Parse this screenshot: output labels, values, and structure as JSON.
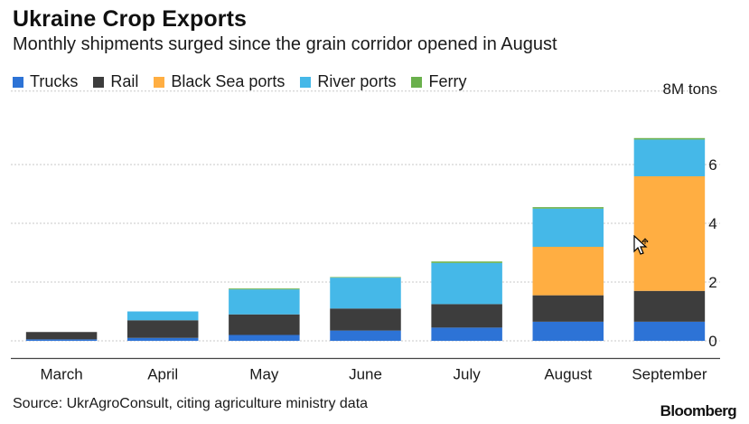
{
  "chart_data": {
    "type": "bar",
    "stacked": true,
    "title": "Ukraine Crop Exports",
    "subtitle": "Monthly shipments surged since the grain corridor opened in August",
    "unit_label": "8M tons",
    "categories": [
      "March",
      "April",
      "May",
      "June",
      "July",
      "August",
      "September"
    ],
    "series": [
      {
        "name": "Trucks",
        "color": "#2d73d6",
        "values": [
          0.05,
          0.1,
          0.2,
          0.35,
          0.45,
          0.65,
          0.65
        ]
      },
      {
        "name": "Rail",
        "color": "#3d3d3d",
        "values": [
          0.25,
          0.6,
          0.7,
          0.75,
          0.8,
          0.9,
          1.05
        ]
      },
      {
        "name": "Black Sea ports",
        "color": "#ffae42",
        "values": [
          0,
          0,
          0,
          0,
          0,
          1.65,
          3.9
        ]
      },
      {
        "name": "River ports",
        "color": "#45b8e8",
        "values": [
          0,
          0.3,
          0.85,
          1.05,
          1.4,
          1.3,
          1.25
        ]
      },
      {
        "name": "Ferry",
        "color": "#6ab04c",
        "values": [
          0,
          0,
          0.03,
          0.02,
          0.05,
          0.05,
          0.05
        ]
      }
    ],
    "yticks": [
      0,
      2,
      4,
      6
    ],
    "ylim": [
      -0.6,
      8.5
    ],
    "grid": true,
    "legend_position": "top-left"
  },
  "footer": {
    "source": "Source: UkrAgroConsult, citing agriculture ministry data",
    "brand": "Bloomberg"
  },
  "cursor": {
    "icon": "move-cursor-icon"
  }
}
